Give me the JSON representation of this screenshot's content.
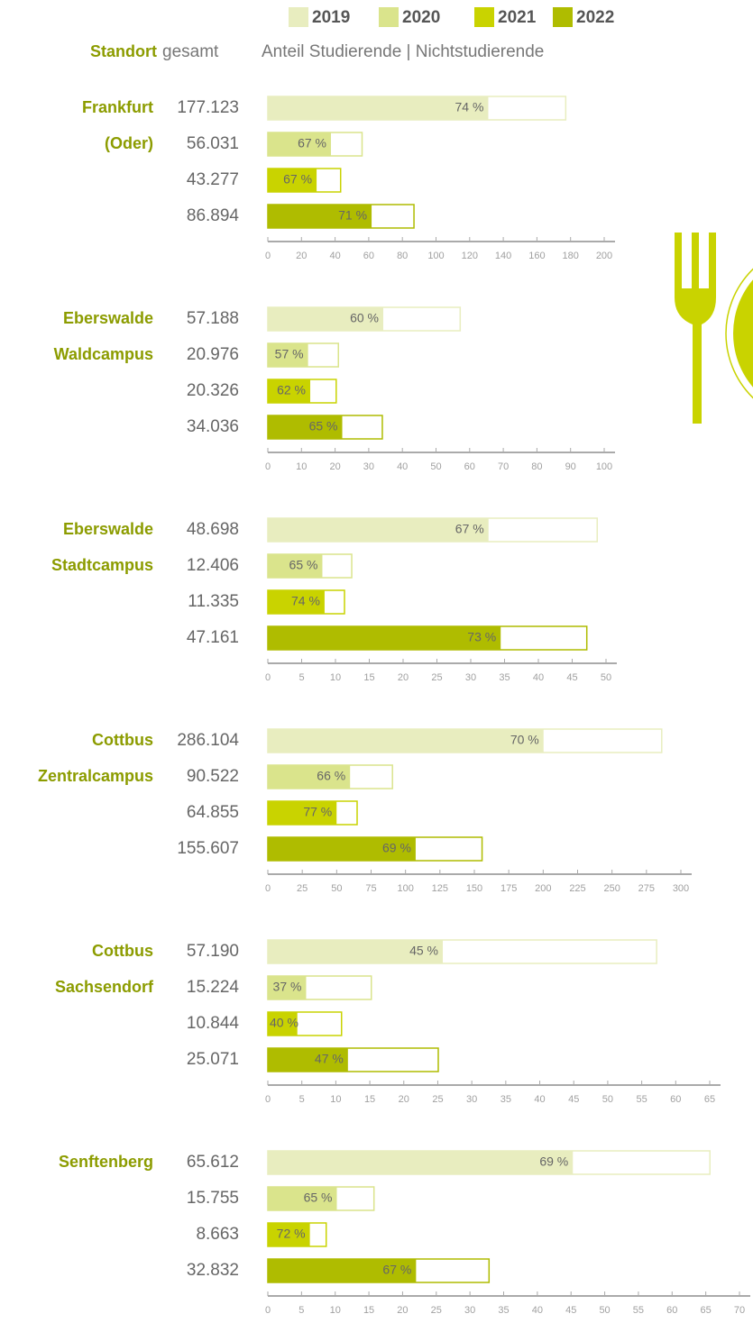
{
  "legend": [
    {
      "name": "2019",
      "color": "#e8edbf"
    },
    {
      "name": "2020",
      "color": "#dae48c"
    },
    {
      "name": "2021",
      "color": "#c9d300"
    },
    {
      "name": "2022",
      "color": "#afbc00"
    }
  ],
  "header": {
    "location": "Standort",
    "total": "gesamt",
    "share": "Anteil Studierende | Nichtstudierende"
  },
  "chart_data": [
    {
      "type": "bar",
      "title": [
        "Frankfurt",
        "(Oder)"
      ],
      "values": [
        177.123,
        56.031,
        43.277,
        86.894
      ],
      "value_labels": [
        "177.123",
        "56.031",
        "43.277",
        "86.894"
      ],
      "shares": [
        74,
        67,
        67,
        71
      ],
      "share_labels": [
        "74 %",
        "67 %",
        "67 %",
        "71 %"
      ],
      "xlim": [
        0,
        200
      ],
      "xticks": [
        0,
        20,
        40,
        60,
        80,
        100,
        120,
        140,
        160,
        180,
        200
      ]
    },
    {
      "type": "bar",
      "title": [
        "Eberswalde",
        "Waldcampus"
      ],
      "values": [
        57.188,
        20.976,
        20.326,
        34.036
      ],
      "value_labels": [
        "57.188",
        "20.976",
        "20.326",
        "34.036"
      ],
      "shares": [
        60,
        57,
        62,
        65
      ],
      "share_labels": [
        "60 %",
        "57 %",
        "62 %",
        "65 %"
      ],
      "xlim": [
        0,
        100
      ],
      "xticks": [
        0,
        10,
        20,
        30,
        40,
        50,
        60,
        70,
        80,
        90,
        100
      ]
    },
    {
      "type": "bar",
      "title": [
        "Eberswalde",
        "Stadtcampus"
      ],
      "values": [
        48.698,
        12.406,
        11.335,
        47.161
      ],
      "value_labels": [
        "48.698",
        "12.406",
        "11.335",
        "47.161"
      ],
      "shares": [
        67,
        65,
        74,
        73
      ],
      "share_labels": [
        "67 %",
        "65 %",
        "74 %",
        "73 %"
      ],
      "xlim": [
        0,
        50
      ],
      "xticks": [
        0,
        5,
        10,
        15,
        20,
        25,
        30,
        35,
        40,
        45,
        50
      ]
    },
    {
      "type": "bar",
      "title": [
        "Cottbus",
        "Zentralcampus"
      ],
      "values": [
        286.104,
        90.522,
        64.855,
        155.607
      ],
      "value_labels": [
        "286.104",
        "90.522",
        "64.855",
        "155.607"
      ],
      "shares": [
        70,
        66,
        77,
        69
      ],
      "share_labels": [
        "70 %",
        "66 %",
        "77 %",
        "69 %"
      ],
      "xlim": [
        0,
        300
      ],
      "xticks": [
        0,
        25,
        50,
        75,
        100,
        125,
        150,
        175,
        200,
        225,
        250,
        275,
        300
      ]
    },
    {
      "type": "bar",
      "title": [
        "Cottbus",
        "Sachsendorf"
      ],
      "values": [
        57.19,
        15.224,
        10.844,
        25.071
      ],
      "value_labels": [
        "57.190",
        "15.224",
        "10.844",
        "25.071"
      ],
      "shares": [
        45,
        37,
        40,
        47
      ],
      "share_labels": [
        "45 %",
        "37 %",
        "40 %",
        "47 %"
      ],
      "xlim": [
        0,
        65
      ],
      "xticks": [
        0,
        5,
        10,
        15,
        20,
        25,
        30,
        35,
        40,
        45,
        50,
        55,
        60,
        65
      ]
    },
    {
      "type": "bar",
      "title": [
        "Senftenberg"
      ],
      "values": [
        65.612,
        15.755,
        8.663,
        32.832
      ],
      "value_labels": [
        "65.612",
        "15.755",
        "8.663",
        "32.832"
      ],
      "shares": [
        69,
        65,
        72,
        67
      ],
      "share_labels": [
        "69 %",
        "65 %",
        "72 %",
        "67 %"
      ],
      "xlim": [
        0,
        70
      ],
      "xticks": [
        0,
        5,
        10,
        15,
        20,
        25,
        30,
        35,
        40,
        45,
        50,
        55,
        60,
        65,
        70
      ]
    }
  ]
}
